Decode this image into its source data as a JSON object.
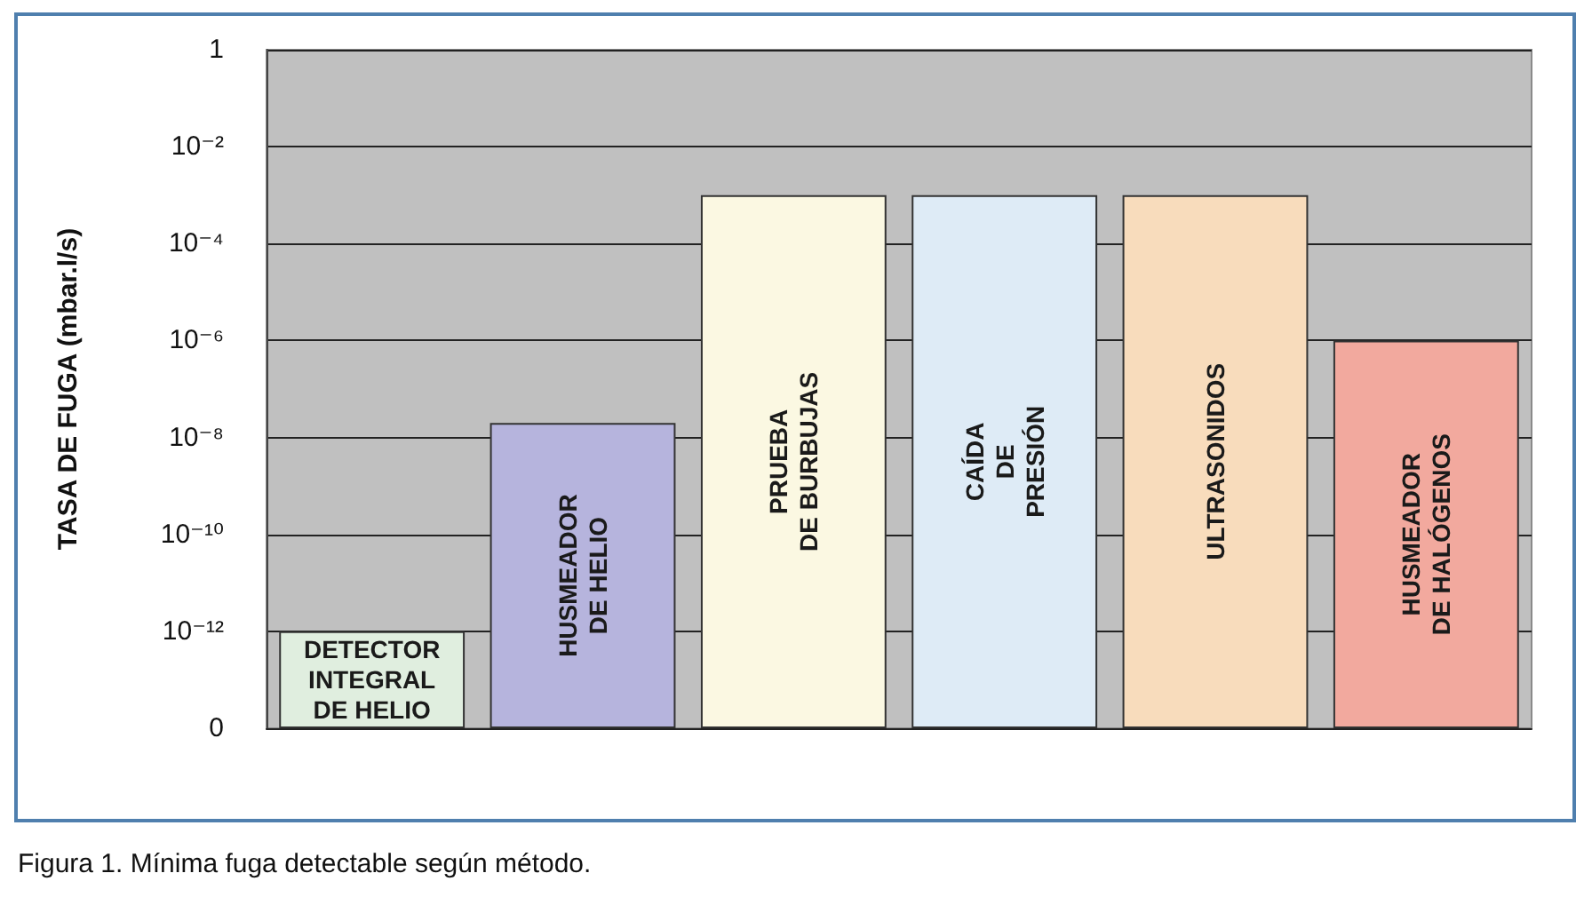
{
  "chart_data": {
    "type": "bar",
    "ylabel": "TASA DE FUGA (mbar.l/s)",
    "annotations": [
      "Figura 1. Mínima fuga detectable según método."
    ],
    "categories": [
      "DETECTOR\nINTEGRAL\nDE HELIO",
      "HUSMEADOR\nDE HELIO",
      "PRUEBA\nDE BURBUJAS",
      "CAÍDA\nDE\nPRESIÓN",
      "ULTRASONIDOS",
      "HUSMEADOR\nDE HALÓGENOS"
    ],
    "values": [
      1e-12,
      2e-08,
      0.001,
      0.001,
      0.001,
      1e-06
    ],
    "colors": [
      "#e0eedf",
      "#b6b4dd",
      "#fbf8e2",
      "#deebf6",
      "#f8dcbc",
      "#f2a99e"
    ],
    "log": true,
    "ylim": [
      1e-14,
      1
    ],
    "yticks": [
      {
        "value": 1e-14,
        "label": "0"
      },
      {
        "value": 1e-12,
        "label": "10⁻¹²"
      },
      {
        "value": 1e-10,
        "label": "10⁻¹⁰"
      },
      {
        "value": 1e-08,
        "label": "10⁻⁸"
      },
      {
        "value": 1e-06,
        "label": "10⁻⁶"
      },
      {
        "value": 0.0001,
        "label": "10⁻⁴"
      },
      {
        "value": 0.01,
        "label": "10⁻²"
      },
      1
    ],
    "grid": "y",
    "tick_labels": "y"
  }
}
